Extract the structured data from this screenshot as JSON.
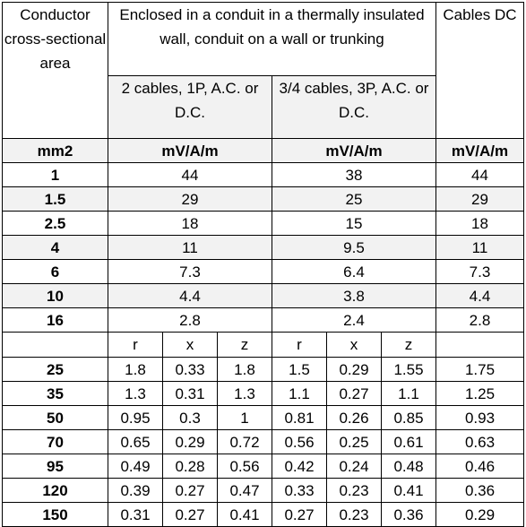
{
  "header": {
    "conductor": "Conductor cross-sectional area",
    "enclosed": "Enclosed in a conduit in a thermally insulated wall, conduit on a wall or trunking",
    "two_cables": "2 cables, 1P, A.C. or D.C.",
    "three_four_cables": "3/4 cables, 3P, A.C. or D.C.",
    "cables_dc": "Cables DC"
  },
  "units": {
    "size": "mm2",
    "a": "mV/A/m",
    "b": "mV/A/m",
    "c": "mV/A/m"
  },
  "small_rows": [
    {
      "size": "1",
      "two": "44",
      "three": "38",
      "dc": "44"
    },
    {
      "size": "1.5",
      "two": "29",
      "three": "25",
      "dc": "29"
    },
    {
      "size": "2.5",
      "two": "18",
      "three": "15",
      "dc": "18"
    },
    {
      "size": "4",
      "two": "11",
      "three": "9.5",
      "dc": "11"
    },
    {
      "size": "6",
      "two": "7.3",
      "three": "6.4",
      "dc": "7.3"
    },
    {
      "size": "10",
      "two": "4.4",
      "three": "3.8",
      "dc": "4.4"
    },
    {
      "size": "16",
      "two": "2.8",
      "three": "2.4",
      "dc": "2.8"
    }
  ],
  "rxz": [
    "r",
    "x",
    "z",
    "r",
    "x",
    "z"
  ],
  "large_rows": [
    {
      "size": "25",
      "r1": "1.8",
      "x1": "0.33",
      "z1": "1.8",
      "r2": "1.5",
      "x2": "0.29",
      "z2": "1.55",
      "dc": "1.75"
    },
    {
      "size": "35",
      "r1": "1.3",
      "x1": "0.31",
      "z1": "1.3",
      "r2": "1.1",
      "x2": "0.27",
      "z2": "1.1",
      "dc": "1.25"
    },
    {
      "size": "50",
      "r1": "0.95",
      "x1": "0.3",
      "z1": "1",
      "r2": "0.81",
      "x2": "0.26",
      "z2": "0.85",
      "dc": "0.93"
    },
    {
      "size": "70",
      "r1": "0.65",
      "x1": "0.29",
      "z1": "0.72",
      "r2": "0.56",
      "x2": "0.25",
      "z2": "0.61",
      "dc": "0.63"
    },
    {
      "size": "95",
      "r1": "0.49",
      "x1": "0.28",
      "z1": "0.56",
      "r2": "0.42",
      "x2": "0.24",
      "z2": "0.48",
      "dc": "0.46"
    },
    {
      "size": "120",
      "r1": "0.39",
      "x1": "0.27",
      "z1": "0.47",
      "r2": "0.33",
      "x2": "0.23",
      "z2": "0.41",
      "dc": "0.36"
    },
    {
      "size": "150",
      "r1": "0.31",
      "x1": "0.27",
      "z1": "0.41",
      "r2": "0.27",
      "x2": "0.23",
      "z2": "0.36",
      "dc": "0.29"
    }
  ]
}
